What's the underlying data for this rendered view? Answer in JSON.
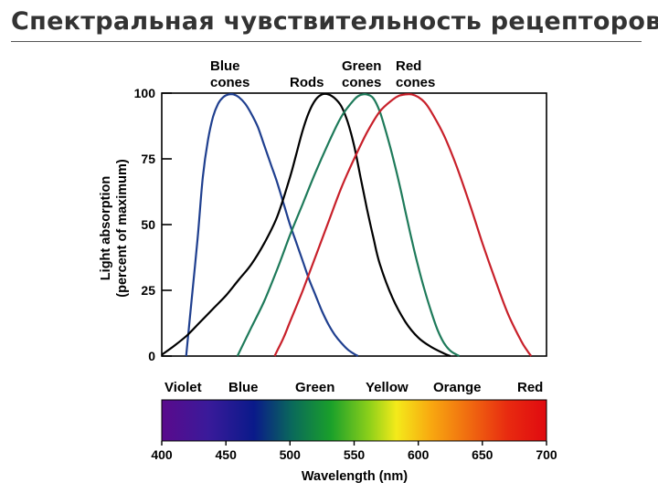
{
  "slide": {
    "title": "Спектральная чувствительность рецепторов"
  },
  "chart_data": {
    "type": "line",
    "ylabel_line1": "Light absorption",
    "ylabel_line2": "(percent of maximum)",
    "xlabel": "Wavelength (nm)",
    "xlim": [
      400,
      700
    ],
    "ylim": [
      0,
      100
    ],
    "x_ticks": [
      "400",
      "450",
      "500",
      "550",
      "600",
      "650",
      "700"
    ],
    "y_ticks": [
      "0",
      "25",
      "50",
      "75",
      "100"
    ],
    "color_bands": [
      "Violet",
      "Blue",
      "Green",
      "Yellow",
      "Orange",
      "Red"
    ],
    "series": [
      {
        "name_line1": "Blue",
        "name_line2": "cones",
        "color": "#1f3f8f",
        "x": [
          419,
          423,
          428,
          432,
          436,
          440,
          444,
          448,
          452,
          456,
          460,
          465,
          470,
          475,
          480,
          485,
          490,
          495,
          500,
          505,
          510,
          515,
          520,
          525,
          530,
          535,
          540,
          545,
          550,
          553
        ],
        "y": [
          0,
          20,
          45,
          68,
          82,
          91,
          96,
          98.5,
          99.5,
          99.5,
          98.5,
          96,
          92,
          87,
          80,
          73,
          66,
          58,
          50,
          43,
          36,
          29,
          23,
          17,
          12,
          8,
          5,
          2.5,
          0.8,
          0
        ]
      },
      {
        "name": "Rods",
        "color": "#000000",
        "x": [
          400,
          410,
          420,
          430,
          440,
          450,
          460,
          470,
          480,
          490,
          500,
          505,
          510,
          515,
          520,
          525,
          530,
          535,
          540,
          545,
          550,
          555,
          560,
          565,
          570,
          580,
          590,
          600,
          610,
          620,
          625
        ],
        "y": [
          0.5,
          4,
          8,
          13,
          18,
          23,
          29,
          35,
          43,
          53,
          68,
          77,
          86,
          93,
          97.5,
          99.5,
          99.5,
          98,
          95,
          89,
          80,
          68,
          56,
          45,
          35,
          22,
          13,
          7,
          3.5,
          1,
          0
        ]
      },
      {
        "name_line1": "Green",
        "name_line2": "cones",
        "color": "#1e7a5a",
        "x": [
          459,
          465,
          470,
          480,
          490,
          500,
          510,
          520,
          530,
          540,
          550,
          555,
          560,
          565,
          570,
          575,
          580,
          585,
          590,
          595,
          600,
          605,
          610,
          615,
          620,
          625,
          630,
          632
        ],
        "y": [
          0,
          6,
          11,
          21,
          33,
          46,
          58,
          70,
          81,
          91,
          97.5,
          99.3,
          99.5,
          98,
          93,
          85,
          76,
          66,
          55,
          44,
          34,
          25,
          17,
          10,
          5,
          2,
          0.5,
          0
        ]
      },
      {
        "name_line1": "Red",
        "name_line2": "cones",
        "color": "#c8202a",
        "x": [
          488,
          490,
          495,
          500,
          510,
          520,
          530,
          540,
          550,
          560,
          570,
          580,
          585,
          590,
          595,
          600,
          605,
          610,
          620,
          630,
          640,
          650,
          660,
          670,
          680,
          685,
          688
        ],
        "y": [
          0,
          2,
          7,
          13,
          25,
          38,
          51,
          64,
          75,
          85,
          93,
          97.5,
          99,
          99.5,
          99.5,
          98.5,
          96.5,
          93,
          84,
          72,
          58,
          43,
          29,
          16,
          6,
          2,
          0
        ]
      }
    ]
  }
}
